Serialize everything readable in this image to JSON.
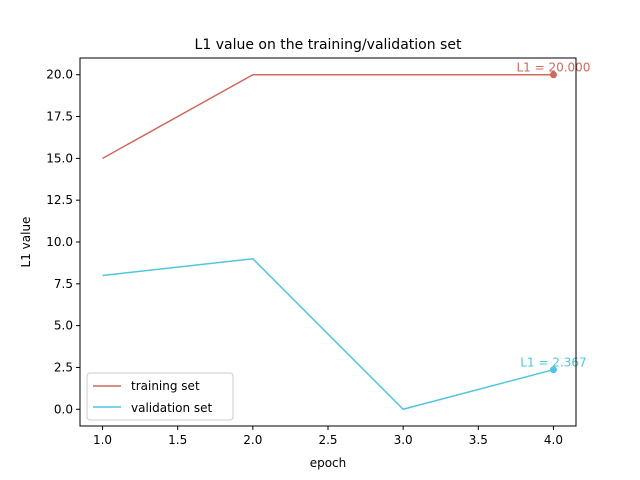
{
  "chart_data": {
    "type": "line",
    "title": "L1 value on the training/validation set",
    "xlabel": "epoch",
    "ylabel": "L1 value",
    "xlim": [
      0.85,
      4.15
    ],
    "ylim": [
      -1.0,
      21.0
    ],
    "xticks": [
      1.0,
      1.5,
      2.0,
      2.5,
      3.0,
      3.5,
      4.0
    ],
    "xtick_labels": [
      "1.0",
      "1.5",
      "2.0",
      "2.5",
      "3.0",
      "3.5",
      "4.0"
    ],
    "yticks": [
      0.0,
      2.5,
      5.0,
      7.5,
      10.0,
      12.5,
      15.0,
      17.5,
      20.0
    ],
    "ytick_labels": [
      "0.0",
      "2.5",
      "5.0",
      "7.5",
      "10.0",
      "12.5",
      "15.0",
      "17.5",
      "20.0"
    ],
    "grid": false,
    "legend_position": "lower-left",
    "x": [
      1,
      2,
      3,
      4
    ],
    "series": [
      {
        "name": "training set",
        "color": "#d0695d",
        "values": [
          15.0,
          20.0,
          20.0,
          20.0
        ],
        "annotation": {
          "x": 4,
          "y": 20.0,
          "text": "L1 = 20.000"
        }
      },
      {
        "name": "validation set",
        "color": "#4ec6e0",
        "values": [
          8.0,
          9.0,
          0.0,
          2.367
        ],
        "annotation": {
          "x": 4,
          "y": 2.367,
          "text": "L1 = 2.367"
        }
      }
    ]
  }
}
